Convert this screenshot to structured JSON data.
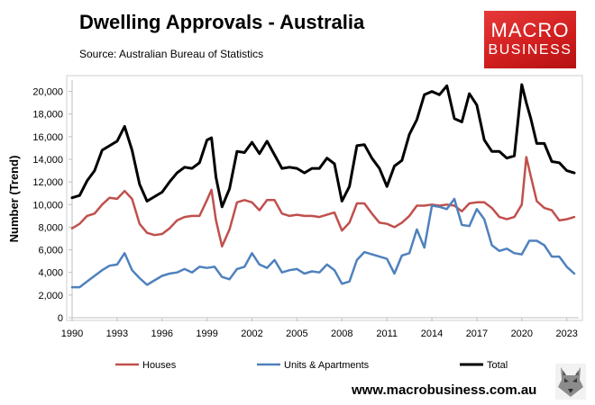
{
  "header": {
    "title": "Dwelling Approvals - Australia",
    "source": "Source: Australian Bureau of Statistics"
  },
  "logo": {
    "line1": "MACRO",
    "line2": "BUSINESS"
  },
  "footer": {
    "url": "www.macrobusiness.com.au"
  },
  "icons": {
    "mascot": "wolf-icon"
  },
  "chart_data": {
    "type": "line",
    "title": "Dwelling Approvals - Australia",
    "xlabel": "",
    "ylabel": "Number (Trend)",
    "xlim": [
      1990,
      2023.8
    ],
    "ylim": [
      0,
      21000
    ],
    "x_ticks": [
      1990,
      1993,
      1996,
      1999,
      2002,
      2005,
      2008,
      2011,
      2014,
      2017,
      2020,
      2023
    ],
    "x_tick_labels": [
      "1990",
      "1993",
      "1996",
      "1999",
      "2002",
      "2005",
      "2008",
      "2011",
      "2014",
      "2017",
      "2020",
      "2023"
    ],
    "y_ticks": [
      0,
      2000,
      4000,
      6000,
      8000,
      10000,
      12000,
      14000,
      16000,
      18000,
      20000
    ],
    "y_tick_labels": [
      "0",
      "2,000",
      "4,000",
      "6,000",
      "8,000",
      "10,000",
      "12,000",
      "14,000",
      "16,000",
      "18,000",
      "20,000"
    ],
    "grid": false,
    "legend": "bottom",
    "series": [
      {
        "name": "Houses",
        "color": "#c0504d",
        "x": [
          1990,
          1990.5,
          1991,
          1991.5,
          1992,
          1992.5,
          1993,
          1993.5,
          1994,
          1994.5,
          1995,
          1995.5,
          1996,
          1996.5,
          1997,
          1997.5,
          1998,
          1998.5,
          1999,
          1999.3,
          1999.6,
          2000,
          2000.5,
          2001,
          2001.5,
          2002,
          2002.5,
          2003,
          2003.5,
          2004,
          2004.5,
          2005,
          2005.5,
          2006,
          2006.5,
          2007,
          2007.5,
          2008,
          2008.5,
          2009,
          2009.5,
          2010,
          2010.5,
          2011,
          2011.5,
          2012,
          2012.5,
          2013,
          2013.5,
          2014,
          2014.5,
          2015,
          2015.5,
          2016,
          2016.5,
          2017,
          2017.5,
          2018,
          2018.5,
          2019,
          2019.5,
          2020,
          2020.3,
          2020.6,
          2021,
          2021.5,
          2022,
          2022.5,
          2023,
          2023.5
        ],
        "y": [
          7900,
          8300,
          9000,
          9200,
          10000,
          10600,
          10500,
          11200,
          10500,
          8300,
          7500,
          7300,
          7400,
          7900,
          8600,
          8900,
          9000,
          9000,
          10400,
          11300,
          8600,
          6300,
          7800,
          10200,
          10400,
          10200,
          9500,
          10400,
          10400,
          9200,
          9000,
          9100,
          9000,
          9000,
          8900,
          9100,
          9300,
          7700,
          8400,
          10100,
          10100,
          9200,
          8400,
          8300,
          8000,
          8400,
          9000,
          9900,
          9900,
          10000,
          9900,
          10000,
          9900,
          9400,
          10100,
          10200,
          10200,
          9700,
          8900,
          8700,
          8900,
          10000,
          14200,
          12500,
          10300,
          9700,
          9500,
          8600,
          8700,
          8900
        ]
      },
      {
        "name": "Units & Apartments",
        "color": "#4f81bd",
        "x": [
          1990,
          1990.5,
          1991,
          1991.5,
          1992,
          1992.5,
          1993,
          1993.5,
          1994,
          1994.5,
          1995,
          1995.5,
          1996,
          1996.5,
          1997,
          1997.5,
          1998,
          1998.5,
          1999,
          1999.5,
          2000,
          2000.5,
          2001,
          2001.5,
          2002,
          2002.5,
          2003,
          2003.5,
          2004,
          2004.5,
          2005,
          2005.5,
          2006,
          2006.5,
          2007,
          2007.5,
          2008,
          2008.5,
          2009,
          2009.5,
          2010,
          2010.5,
          2011,
          2011.5,
          2012,
          2012.5,
          2013,
          2013.5,
          2014,
          2014.5,
          2015,
          2015.5,
          2016,
          2016.5,
          2017,
          2017.5,
          2018,
          2018.5,
          2019,
          2019.5,
          2020,
          2020.5,
          2021,
          2021.5,
          2022,
          2022.5,
          2023,
          2023.5
        ],
        "y": [
          2700,
          2700,
          3200,
          3700,
          4200,
          4600,
          4700,
          5700,
          4200,
          3500,
          2900,
          3300,
          3700,
          3900,
          4000,
          4300,
          4000,
          4500,
          4400,
          4500,
          3600,
          3400,
          4300,
          4500,
          5700,
          4700,
          4400,
          5100,
          4000,
          4200,
          4300,
          3900,
          4100,
          4000,
          4700,
          4200,
          3000,
          3200,
          5100,
          5800,
          5600,
          5400,
          5200,
          3900,
          5500,
          5700,
          7800,
          6200,
          9900,
          9800,
          9600,
          10500,
          8200,
          8100,
          9600,
          8700,
          6400,
          5900,
          6100,
          5700,
          5600,
          6800,
          6800,
          6400,
          5400,
          5400,
          4500,
          3900
        ]
      },
      {
        "name": "Total",
        "color": "#000000",
        "x": [
          1990,
          1990.5,
          1991,
          1991.5,
          1992,
          1992.5,
          1993,
          1993.5,
          1994,
          1994.5,
          1995,
          1995.5,
          1996,
          1996.5,
          1997,
          1997.5,
          1998,
          1998.5,
          1999,
          1999.3,
          1999.6,
          2000,
          2000.5,
          2001,
          2001.5,
          2002,
          2002.5,
          2003,
          2003.5,
          2004,
          2004.5,
          2005,
          2005.5,
          2006,
          2006.5,
          2007,
          2007.5,
          2008,
          2008.5,
          2009,
          2009.5,
          2010,
          2010.5,
          2011,
          2011.5,
          2012,
          2012.5,
          2013,
          2013.5,
          2014,
          2014.5,
          2015,
          2015.5,
          2016,
          2016.5,
          2017,
          2017.5,
          2018,
          2018.5,
          2019,
          2019.5,
          2020,
          2020.3,
          2020.6,
          2021,
          2021.5,
          2022,
          2022.5,
          2023,
          2023.5
        ],
        "y": [
          10600,
          10800,
          12100,
          13000,
          14800,
          15200,
          15600,
          16900,
          14800,
          11800,
          10300,
          10700,
          11100,
          12000,
          12800,
          13300,
          13200,
          13700,
          15700,
          15900,
          12400,
          9800,
          11400,
          14700,
          14600,
          15500,
          14500,
          15600,
          14400,
          13200,
          13300,
          13200,
          12800,
          13200,
          13200,
          14100,
          13600,
          10300,
          11600,
          15200,
          15300,
          14100,
          13200,
          11600,
          13400,
          13900,
          16200,
          17500,
          19700,
          20000,
          19700,
          20500,
          17600,
          17300,
          19800,
          18800,
          15700,
          14700,
          14700,
          14100,
          14300,
          20600,
          19000,
          17600,
          15400,
          15400,
          13800,
          13700,
          13000,
          12800
        ]
      }
    ]
  }
}
